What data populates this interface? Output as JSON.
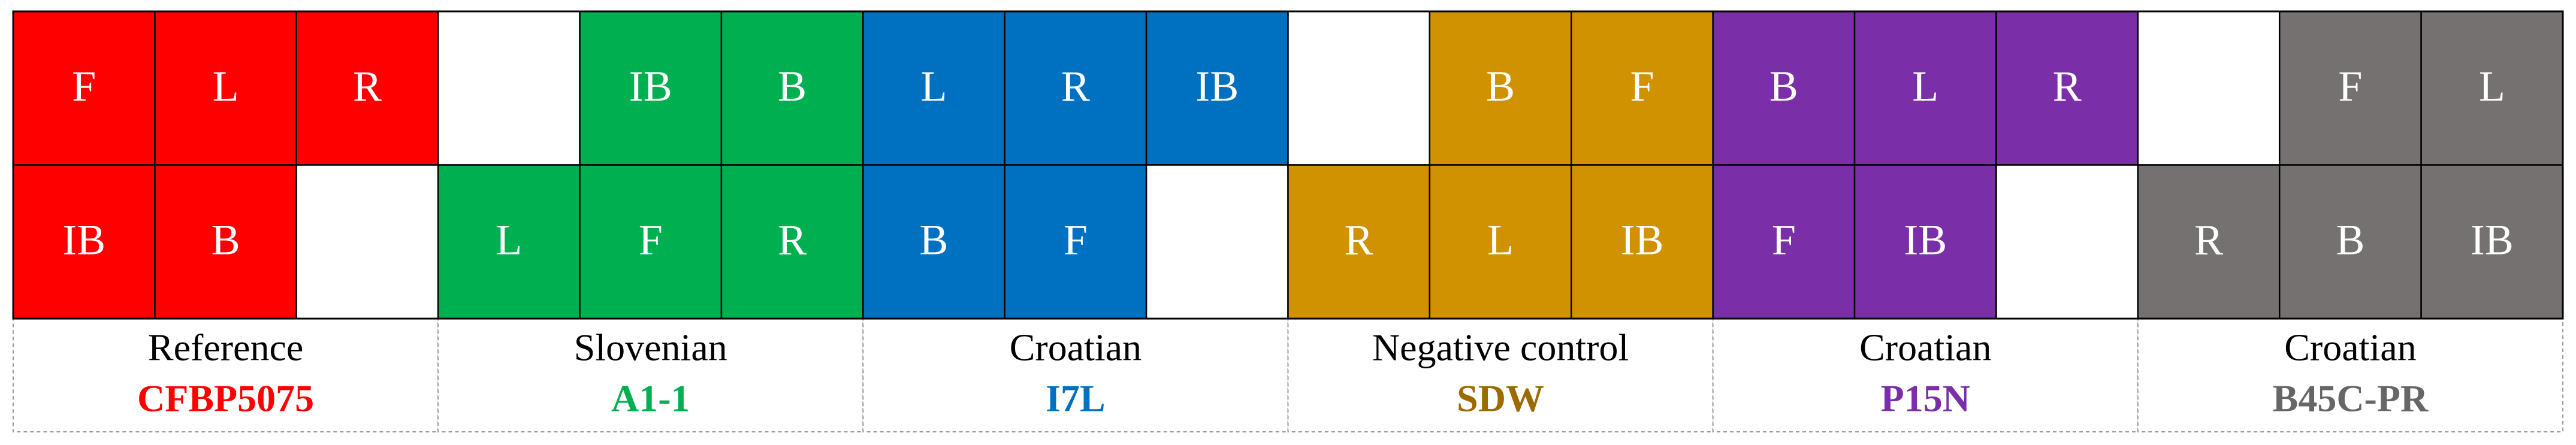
{
  "groups": [
    {
      "label": "Reference",
      "code": "CFBP5075",
      "color": "#ff0000",
      "code_color": "#ff0000",
      "rows": [
        [
          "F",
          "L",
          "R"
        ],
        [
          "IB",
          "B",
          null
        ]
      ]
    },
    {
      "label": "Slovenian",
      "code": "A1-1",
      "color": "#00b050",
      "code_color": "#00b050",
      "rows": [
        [
          null,
          "IB",
          "B"
        ],
        [
          "L",
          "F",
          "R"
        ]
      ]
    },
    {
      "label": "Croatian",
      "code": "I7L",
      "color": "#0070c0",
      "code_color": "#0070c0",
      "rows": [
        [
          "L",
          "R",
          "IB"
        ],
        [
          "B",
          "F",
          null
        ]
      ]
    },
    {
      "label": "Negative control",
      "code": "SDW",
      "color": "#d09200",
      "code_color": "#9c6b00",
      "rows": [
        [
          null,
          "B",
          "F"
        ],
        [
          "R",
          "L",
          "IB"
        ]
      ]
    },
    {
      "label": "Croatian",
      "code": "P15N",
      "color": "#7a2ea8",
      "code_color": "#7a2ea8",
      "rows": [
        [
          "B",
          "L",
          "R"
        ],
        [
          "F",
          "IB",
          null
        ]
      ]
    },
    {
      "label": "Croatian",
      "code": "B45C-PR",
      "color": "#767171",
      "code_color": "#666666",
      "rows": [
        [
          null,
          "F",
          "L"
        ],
        [
          "R",
          "B",
          "IB"
        ]
      ]
    }
  ]
}
